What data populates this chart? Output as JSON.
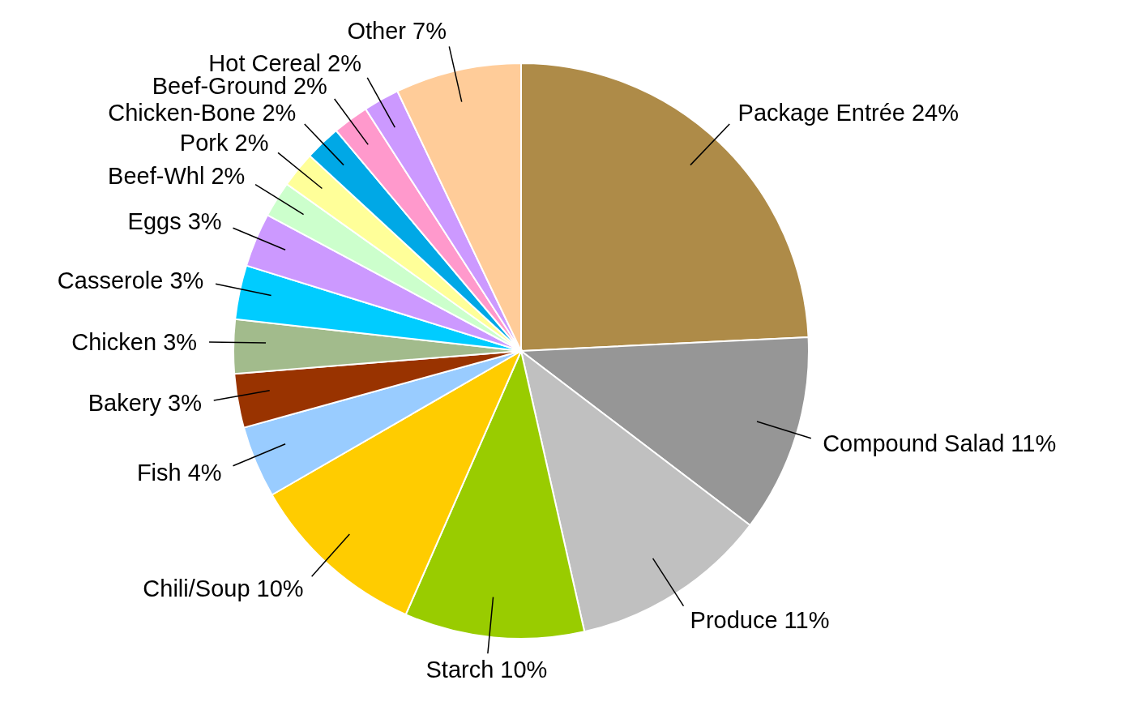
{
  "chart_data": {
    "type": "pie",
    "categories": [
      "Package Entrée",
      "Compound Salad",
      "Produce",
      "Starch",
      "Chili/Soup",
      "Fish",
      "Bakery",
      "Chicken",
      "Casserole",
      "Eggs",
      "Beef-Whl",
      "Pork",
      "Chicken-Bone",
      "Beef-Ground",
      "Hot Cereal",
      "Other"
    ],
    "values": [
      24,
      11,
      11,
      10,
      10,
      4,
      3,
      3,
      3,
      3,
      2,
      2,
      2,
      2,
      2,
      7
    ],
    "value_labels": [
      "24%",
      "11%",
      "11%",
      "10%",
      "10%",
      "4%",
      "3%",
      "3%",
      "3%",
      "3%",
      "2%",
      "2%",
      "2%",
      "2%",
      "2%",
      "7%"
    ],
    "colors": [
      "#ae8b48",
      "#969696",
      "#c0c0c0",
      "#99cc00",
      "#ffcc00",
      "#99ccff",
      "#993300",
      "#a2bb8c",
      "#00ccff",
      "#cc99ff",
      "#ccffcc",
      "#ffff99",
      "#00a8e6",
      "#ff99cc",
      "#cc99ff",
      "#ffcc99"
    ]
  }
}
